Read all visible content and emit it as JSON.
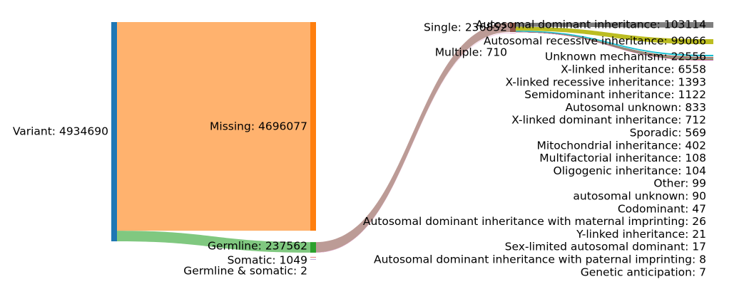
{
  "chart_data": {
    "type": "sankey",
    "nodes": [
      {
        "id": "variant",
        "label": "Variant: 4934690",
        "value": 4934690,
        "column": 0,
        "color": "#1f77b4"
      },
      {
        "id": "missing",
        "label": "Missing: 4696077",
        "value": 4696077,
        "column": 1,
        "color": "#ff7f0e"
      },
      {
        "id": "germline",
        "label": "Germline: 237562",
        "value": 237562,
        "column": 1,
        "color": "#2ca02c"
      },
      {
        "id": "somatic",
        "label": "Somatic: 1049",
        "value": 1049,
        "column": 1,
        "color": "#d62728"
      },
      {
        "id": "germline_somatic",
        "label": "Germline & somatic: 2",
        "value": 2,
        "column": 1,
        "color": "#9467bd"
      },
      {
        "id": "single",
        "label": "Single: 236852",
        "value": 236852,
        "column": 2,
        "color": "#8c564b"
      },
      {
        "id": "multiple",
        "label": "Multiple: 710",
        "value": 710,
        "column": 2,
        "color": "#e377c2"
      }
    ],
    "inheritance": [
      {
        "label": "Autosomal dominant inheritance: 103114",
        "value": 103114,
        "color": "#7f7f7f"
      },
      {
        "label": "Autosomal recessive inheritance: 99066",
        "value": 99066,
        "color": "#bcbd22"
      },
      {
        "label": "Unknown mechanism: 22556",
        "value": 22556,
        "color": "#17becf"
      },
      {
        "label": "X-linked inheritance: 6558",
        "value": 6558,
        "color": "#1f77b4"
      },
      {
        "label": "X-linked recessive inheritance: 1393",
        "value": 1393,
        "color": "#ff7f0e"
      },
      {
        "label": "Semidominant inheritance: 1122",
        "value": 1122,
        "color": "#2ca02c"
      },
      {
        "label": "Autosomal unknown: 833",
        "value": 833,
        "color": "#d62728"
      },
      {
        "label": "X-linked dominant inheritance: 712",
        "value": 712,
        "color": "#9467bd"
      },
      {
        "label": "Sporadic: 569",
        "value": 569,
        "color": "#8c564b"
      },
      {
        "label": "Mitochondrial inheritance: 402",
        "value": 402,
        "color": "#e377c2"
      },
      {
        "label": "Multifactorial inheritance: 108",
        "value": 108,
        "color": "#7f7f7f"
      },
      {
        "label": "Oligogenic inheritance: 104",
        "value": 104,
        "color": "#bcbd22"
      },
      {
        "label": "Other: 99",
        "value": 99,
        "color": "#17becf"
      },
      {
        "label": "autosomal unknown: 90",
        "value": 90,
        "color": "#1f77b4"
      },
      {
        "label": "Codominant: 47",
        "value": 47,
        "color": "#ff7f0e"
      },
      {
        "label": "Autosomal dominant inheritance with maternal imprinting: 26",
        "value": 26,
        "color": "#2ca02c"
      },
      {
        "label": "Y-linked inheritance: 21",
        "value": 21,
        "color": "#d62728"
      },
      {
        "label": "Sex-limited autosomal dominant: 17",
        "value": 17,
        "color": "#9467bd"
      },
      {
        "label": "Autosomal dominant inheritance with paternal imprinting: 8",
        "value": 8,
        "color": "#8c564b"
      },
      {
        "label": "Genetic anticipation: 7",
        "value": 7,
        "color": "#e377c2"
      }
    ],
    "links": [
      {
        "source": "variant",
        "target": "missing",
        "value": 4696077,
        "color": "#ffb26e"
      },
      {
        "source": "variant",
        "target": "germline",
        "value": 237562,
        "color": "#80c880"
      },
      {
        "source": "germline",
        "target": "single",
        "value": 236852,
        "color": "#bc9b96"
      },
      {
        "source": "germline",
        "target": "multiple",
        "value": 710,
        "color": "#efb3dc"
      }
    ]
  }
}
